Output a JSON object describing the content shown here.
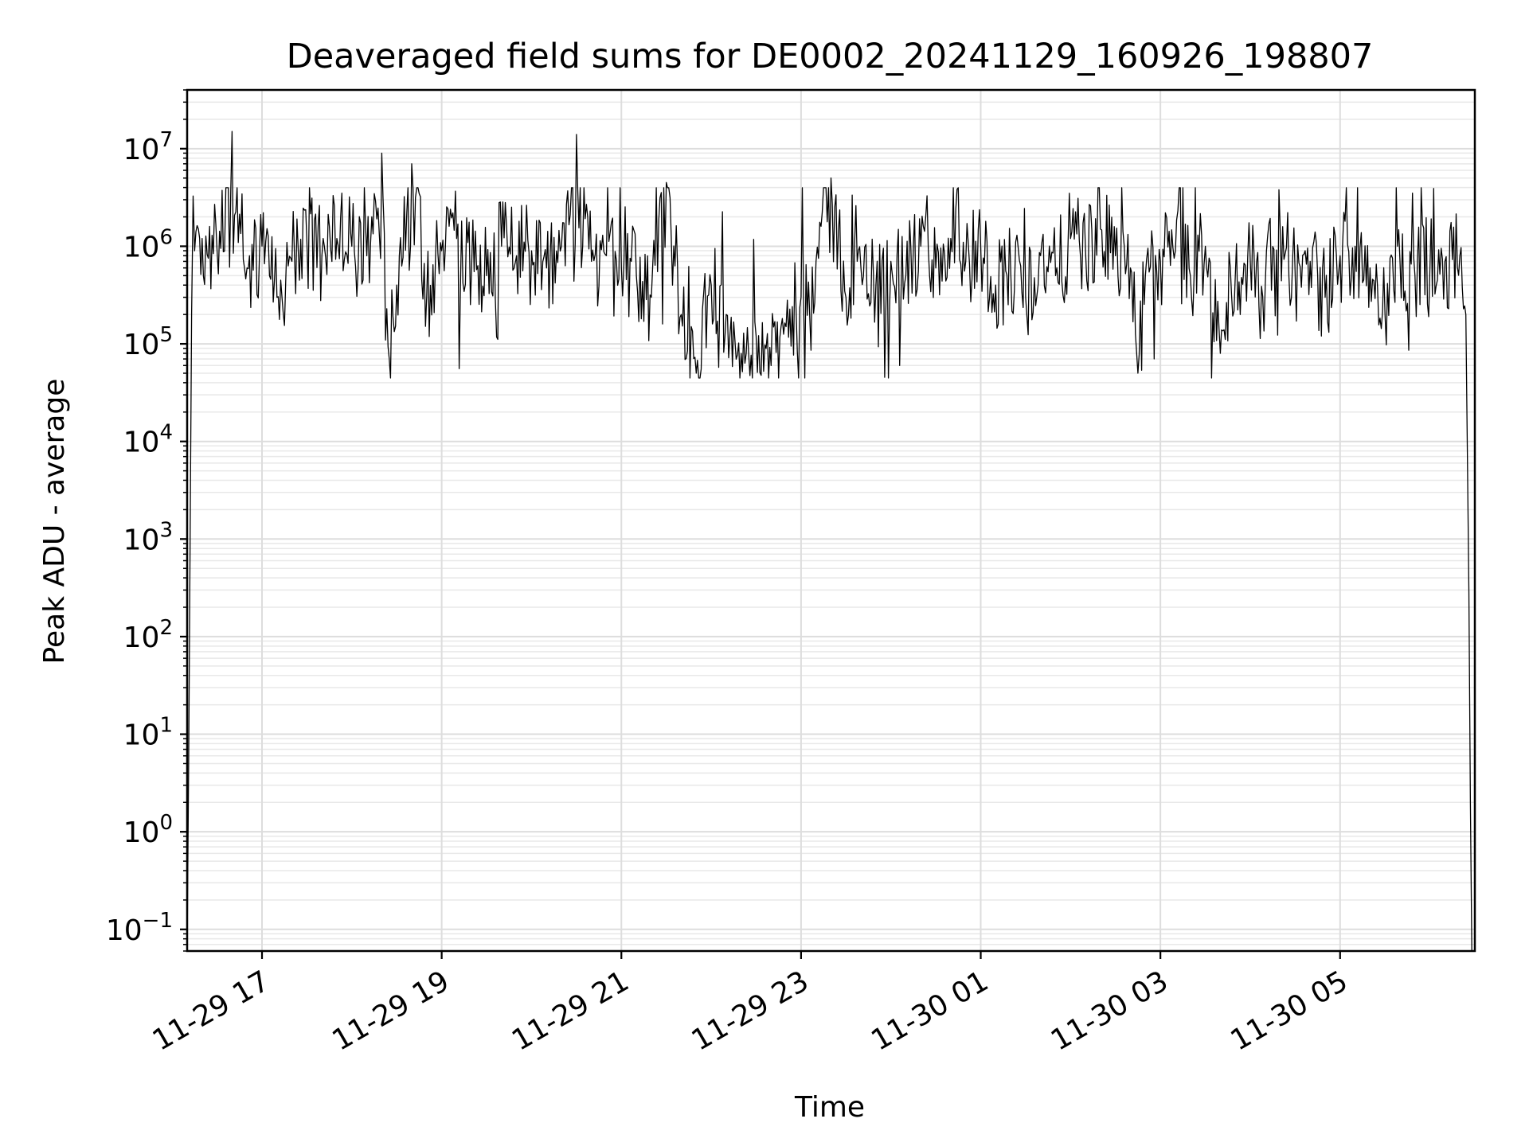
{
  "chart_data": {
    "type": "line",
    "title": "Deaveraged field sums for DE0002_20241129_160926_198807",
    "xlabel": "Time",
    "ylabel": "Peak ADU - average",
    "x_start": "2024-11-29T16:10:00",
    "x_end": "2024-11-30T06:28:00",
    "xlim": [
      "2024-11-29T16:10",
      "2024-11-30T06:30"
    ],
    "ylim": [
      0.06,
      40000000
    ],
    "yscale": "log",
    "grid": true,
    "x_ticks": [
      {
        "value": "2024-11-29T17:00",
        "label": "11-29 17"
      },
      {
        "value": "2024-11-29T19:00",
        "label": "11-29 19"
      },
      {
        "value": "2024-11-29T21:00",
        "label": "11-29 21"
      },
      {
        "value": "2024-11-29T23:00",
        "label": "11-29 23"
      },
      {
        "value": "2024-11-30T01:00",
        "label": "11-30 01"
      },
      {
        "value": "2024-11-30T03:00",
        "label": "11-30 03"
      },
      {
        "value": "2024-11-30T05:00",
        "label": "11-30 05"
      }
    ],
    "y_ticks": [
      {
        "value": 0.1,
        "base": "10",
        "exp": "−1"
      },
      {
        "value": 1,
        "base": "10",
        "exp": "0"
      },
      {
        "value": 10,
        "base": "10",
        "exp": "1"
      },
      {
        "value": 100,
        "base": "10",
        "exp": "2"
      },
      {
        "value": 1000,
        "base": "10",
        "exp": "3"
      },
      {
        "value": 10000,
        "base": "10",
        "exp": "4"
      },
      {
        "value": 100000,
        "base": "10",
        "exp": "5"
      },
      {
        "value": 1000000,
        "base": "10",
        "exp": "6"
      },
      {
        "value": 10000000,
        "base": "10",
        "exp": "7"
      }
    ],
    "series": [
      {
        "color": "#000000",
        "points": [
          [
            "2024-11-29T16:10",
            0.06
          ],
          [
            "2024-11-29T16:11",
            5
          ],
          [
            "2024-11-29T16:13",
            200000
          ],
          [
            "2024-11-29T16:15",
            900000
          ],
          [
            "2024-11-29T16:20",
            1200000
          ],
          [
            "2024-11-29T16:30",
            900000
          ],
          [
            "2024-11-29T16:40",
            15000000
          ],
          [
            "2024-11-29T16:50",
            600000
          ],
          [
            "2024-11-29T17:00",
            1000000
          ],
          [
            "2024-11-29T17:10",
            300000
          ],
          [
            "2024-11-29T17:20",
            700000
          ],
          [
            "2024-11-29T17:30",
            1100000
          ],
          [
            "2024-11-29T17:40",
            800000
          ],
          [
            "2024-11-29T17:50",
            1200000
          ],
          [
            "2024-11-29T18:00",
            1000000
          ],
          [
            "2024-11-29T18:10",
            800000
          ],
          [
            "2024-11-29T18:20",
            9000000
          ],
          [
            "2024-11-29T18:25",
            70000
          ],
          [
            "2024-11-29T18:30",
            400000
          ],
          [
            "2024-11-29T18:40",
            7000000
          ],
          [
            "2024-11-29T18:50",
            300000
          ],
          [
            "2024-11-29T19:00",
            900000
          ],
          [
            "2024-11-29T19:10",
            1200000
          ],
          [
            "2024-11-29T19:20",
            600000
          ],
          [
            "2024-11-29T19:30",
            500000
          ],
          [
            "2024-11-29T19:40",
            1000000
          ],
          [
            "2024-11-29T19:50",
            800000
          ],
          [
            "2024-11-29T20:00",
            900000
          ],
          [
            "2024-11-29T20:10",
            600000
          ],
          [
            "2024-11-29T20:20",
            1000000
          ],
          [
            "2024-11-29T20:30",
            14000000
          ],
          [
            "2024-11-29T20:40",
            700000
          ],
          [
            "2024-11-29T20:50",
            800000
          ],
          [
            "2024-11-29T21:00",
            600000
          ],
          [
            "2024-11-29T21:10",
            500000
          ],
          [
            "2024-11-29T21:20",
            300000
          ],
          [
            "2024-11-29T21:30",
            4500000
          ],
          [
            "2024-11-29T21:40",
            200000
          ],
          [
            "2024-11-29T21:50",
            50000
          ],
          [
            "2024-11-29T22:00",
            400000
          ],
          [
            "2024-11-29T22:10",
            200000
          ],
          [
            "2024-11-29T22:20",
            80000
          ],
          [
            "2024-11-29T22:30",
            120000
          ],
          [
            "2024-11-29T22:40",
            60000
          ],
          [
            "2024-11-29T22:50",
            150000
          ],
          [
            "2024-11-29T23:00",
            300000
          ],
          [
            "2024-11-29T23:10",
            700000
          ],
          [
            "2024-11-29T23:20",
            5000000
          ],
          [
            "2024-11-29T23:30",
            300000
          ],
          [
            "2024-11-29T23:40",
            600000
          ],
          [
            "2024-11-29T23:50",
            400000
          ],
          [
            "2024-11-30T00:00",
            700000
          ],
          [
            "2024-11-30T00:10",
            500000
          ],
          [
            "2024-11-30T00:20",
            1000000
          ],
          [
            "2024-11-30T00:30",
            600000
          ],
          [
            "2024-11-30T00:40",
            1200000
          ],
          [
            "2024-11-30T00:50",
            700000
          ],
          [
            "2024-11-30T01:00",
            1000000
          ],
          [
            "2024-11-30T01:10",
            400000
          ],
          [
            "2024-11-30T01:20",
            600000
          ],
          [
            "2024-11-30T01:30",
            300000
          ],
          [
            "2024-11-30T01:40",
            800000
          ],
          [
            "2024-11-30T01:50",
            500000
          ],
          [
            "2024-11-30T02:00",
            1200000
          ],
          [
            "2024-11-30T02:10",
            900000
          ],
          [
            "2024-11-30T02:20",
            1500000
          ],
          [
            "2024-11-30T02:30",
            800000
          ],
          [
            "2024-11-30T02:40",
            600000
          ],
          [
            "2024-11-30T02:45",
            50000
          ],
          [
            "2024-11-30T02:50",
            500000
          ],
          [
            "2024-11-30T03:00",
            700000
          ],
          [
            "2024-11-30T03:10",
            900000
          ],
          [
            "2024-11-30T03:20",
            500000
          ],
          [
            "2024-11-30T03:30",
            1000000
          ],
          [
            "2024-11-30T03:40",
            80000
          ],
          [
            "2024-11-30T03:50",
            500000
          ],
          [
            "2024-11-30T04:00",
            700000
          ],
          [
            "2024-11-30T04:10",
            400000
          ],
          [
            "2024-11-30T04:20",
            1500000
          ],
          [
            "2024-11-30T04:30",
            500000
          ],
          [
            "2024-11-30T04:40",
            700000
          ],
          [
            "2024-11-30T04:50",
            300000
          ],
          [
            "2024-11-30T05:00",
            800000
          ],
          [
            "2024-11-30T05:10",
            1000000
          ],
          [
            "2024-11-30T05:20",
            600000
          ],
          [
            "2024-11-30T05:30",
            200000
          ],
          [
            "2024-11-30T05:40",
            700000
          ],
          [
            "2024-11-30T05:50",
            500000
          ],
          [
            "2024-11-30T06:00",
            600000
          ],
          [
            "2024-11-30T06:10",
            700000
          ],
          [
            "2024-11-30T06:20",
            800000
          ],
          [
            "2024-11-30T06:24",
            200000
          ],
          [
            "2024-11-30T06:26",
            300
          ],
          [
            "2024-11-30T06:27",
            2
          ],
          [
            "2024-11-30T06:28",
            0.06
          ]
        ]
      }
    ]
  }
}
